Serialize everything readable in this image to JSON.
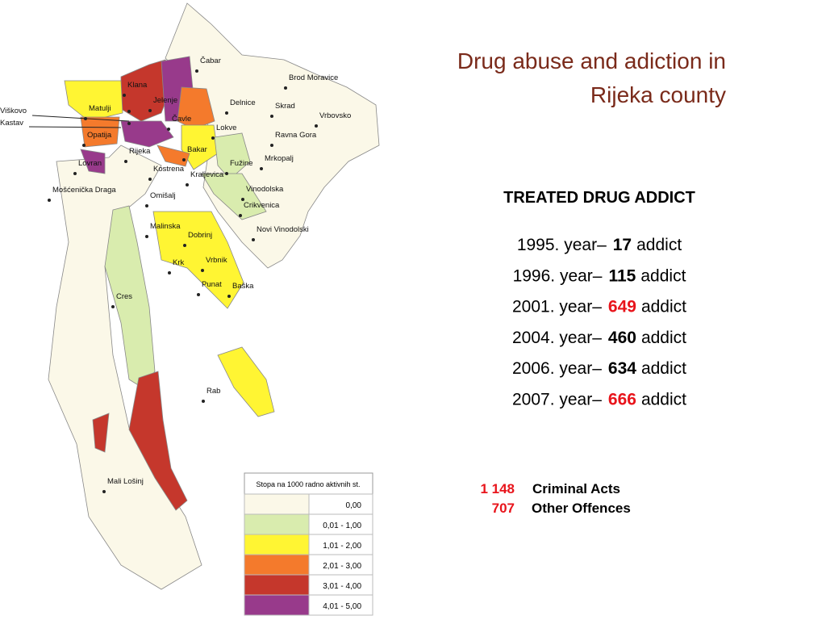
{
  "title_lines": [
    "Drug abuse and adiction in",
    "Rijeka county"
  ],
  "map": {
    "places": [
      "Čabar",
      "Brod Moravice",
      "Klana",
      "Jelenje",
      "Matulji",
      "Viškovo",
      "Kastav",
      "Opatija",
      "Čavle",
      "Delnice",
      "Skrad",
      "Vrbovsko",
      "Lokve",
      "Ravna Gora",
      "Rijeka",
      "Bakar",
      "Fužine",
      "Mrkopalj",
      "Lovran",
      "Kostrena",
      "Kraljevica",
      "Mošćenička Draga",
      "Omišalj",
      "Vinodolska",
      "Crikvenica",
      "Novi Vinodolski",
      "Malinska",
      "Dobrinj",
      "Krk",
      "Vrbnik",
      "Punat",
      "Baška",
      "Cres",
      "Rab",
      "Mali Lošinj"
    ],
    "legend": {
      "title": "Stopa na 1000 radno aktivnih st.",
      "items": [
        {
          "label": "0,00",
          "color": "#fbf8e8"
        },
        {
          "label": "0,01 - 1,00",
          "color": "#d9ecae"
        },
        {
          "label": "1,01 - 2,00",
          "color": "#fff533"
        },
        {
          "label": "2,01 - 3,00",
          "color": "#f47a2c"
        },
        {
          "label": "3,01 - 4,00",
          "color": "#c5372c"
        },
        {
          "label": "4,01 - 5,00",
          "color": "#983a8b"
        }
      ]
    }
  },
  "stats": {
    "heading": "TREATED DRUG ADDICT",
    "rows": [
      {
        "year": "1995. year–",
        "count": 17,
        "unit": "addict",
        "color": "#000000"
      },
      {
        "year": "1996. year–",
        "count": 115,
        "unit": "addict",
        "color": "#000000"
      },
      {
        "year": "2001. year–",
        "count": 649,
        "unit": "addict",
        "color": "#e8141b"
      },
      {
        "year": "2004. year–",
        "count": 460,
        "unit": "addict",
        "color": "#000000"
      },
      {
        "year": "2006. year–",
        "count": 634,
        "unit": "addict",
        "color": "#000000"
      },
      {
        "year": "2007. year–",
        "count": 666,
        "unit": "addict",
        "color": "#e8141b"
      }
    ],
    "offences": [
      {
        "count": {
          "value": 1148,
          "label": "1 148"
        },
        "label": "Criminal Acts"
      },
      {
        "count": 707,
        "label": "Other Offences"
      }
    ]
  }
}
